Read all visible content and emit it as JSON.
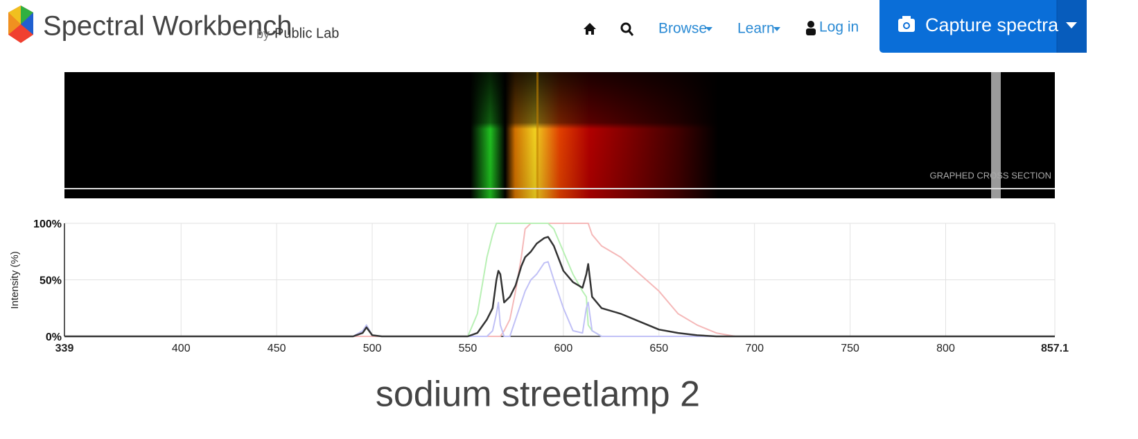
{
  "header": {
    "brand": "Spectral Workbench",
    "byline": "by",
    "org": "Public Lab",
    "nav": [
      "Browse",
      "Learn",
      "Log in"
    ],
    "button": "Capture spectra"
  },
  "spectrum_image": {
    "label": "GRAPHED CROSS SECTION"
  },
  "chart_data": {
    "type": "line",
    "ylabel": "Intensity (%)",
    "x": [
      339,
      450,
      490,
      495,
      497,
      500,
      505,
      540,
      550,
      555,
      560,
      563,
      565,
      566,
      567,
      569,
      572,
      575,
      578,
      580,
      583,
      586,
      590,
      592,
      595,
      600,
      605,
      610,
      612,
      613,
      615,
      620,
      630,
      640,
      650,
      660,
      670,
      680,
      690,
      700,
      750,
      800,
      857.1
    ],
    "series": [
      {
        "color": "#f5b8b8",
        "values": [
          0,
          0,
          0,
          0,
          0,
          0,
          0,
          0,
          0,
          0,
          0,
          0,
          0,
          0,
          0,
          5,
          15,
          40,
          70,
          95,
          100,
          100,
          100,
          100,
          100,
          100,
          100,
          100,
          100,
          100,
          90,
          80,
          70,
          55,
          40,
          20,
          10,
          3,
          0,
          0,
          0,
          0,
          0
        ]
      },
      {
        "color": "#b8f0b4",
        "values": [
          0,
          0,
          0,
          3,
          10,
          1,
          0,
          0,
          0,
          20,
          70,
          90,
          100,
          100,
          100,
          100,
          100,
          100,
          100,
          100,
          100,
          100,
          100,
          100,
          95,
          75,
          55,
          40,
          35,
          10,
          5,
          0,
          0,
          0,
          0,
          0,
          0,
          0,
          0,
          0,
          0,
          0,
          0
        ]
      },
      {
        "color": "#c0c0f6",
        "values": [
          0,
          0,
          0,
          5,
          10,
          1,
          0,
          0,
          0,
          0,
          0,
          5,
          20,
          30,
          10,
          0,
          0,
          15,
          30,
          40,
          50,
          55,
          65,
          66,
          50,
          25,
          5,
          3,
          25,
          30,
          5,
          0,
          0,
          0,
          0,
          0,
          0,
          0,
          0,
          0,
          0,
          0,
          0
        ]
      },
      {
        "color": "#333333",
        "values": [
          0,
          0,
          0,
          3,
          8,
          1,
          0,
          0,
          0,
          3,
          15,
          25,
          50,
          58,
          55,
          30,
          35,
          45,
          62,
          70,
          75,
          82,
          87,
          88,
          80,
          58,
          48,
          43,
          55,
          64,
          35,
          25,
          20,
          13,
          6,
          3,
          1,
          0,
          0,
          0,
          0,
          0,
          0
        ]
      }
    ],
    "xlim": [
      339,
      857.1
    ],
    "xticks": [
      339,
      400,
      450,
      500,
      550,
      600,
      650,
      700,
      750,
      800,
      857.1
    ],
    "ylim": [
      0,
      100
    ],
    "yticks": [
      {
        "value": 0,
        "label": "0%"
      },
      {
        "value": 50,
        "label": "50%"
      },
      {
        "value": 100,
        "label": "100%"
      }
    ],
    "grid": true
  },
  "title": "sodium streetlamp 2"
}
